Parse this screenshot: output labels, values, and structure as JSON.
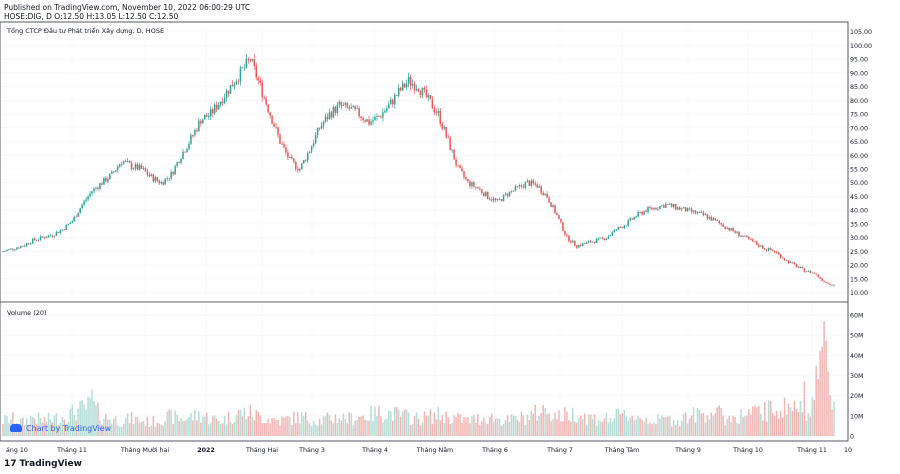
{
  "header": {
    "published": "Published on TradingView.com, November 10, 2022 06:00:29 UTC",
    "ohlc_line": "HOSE:DIG, D O:12.50 H:13.05 L:12.50 C:12.50"
  },
  "footer": {
    "brand": "TradingView",
    "watermark": "Chart by TradingView"
  },
  "colors": {
    "up": "#26a69a",
    "down": "#ef5350",
    "vol_up": "#b5ddd6",
    "vol_down": "#f3b5b4",
    "grid": "#f0f3fa",
    "axis_text": "#131722",
    "pane_border": "#2a2e39"
  },
  "chart_data": {
    "type": "candlestick",
    "title": "Tổng CTCP Đầu tư Phát triển Xây dựng, D, HOSE",
    "volume_title": "Volume (20)",
    "price_axis": {
      "ticks": [
        "105.00",
        "100.00",
        "95.00",
        "90.00",
        "85.00",
        "80.00",
        "75.00",
        "70.00",
        "65.00",
        "60.00",
        "55.00",
        "50.00",
        "45.00",
        "40.00",
        "35.00",
        "30.00",
        "25.00",
        "20.00",
        "15.00",
        "10.00"
      ],
      "range": [
        8,
        106
      ]
    },
    "volume_axis": {
      "ticks": [
        "60M",
        "50M",
        "40M",
        "30M",
        "20M",
        "10M",
        "0"
      ],
      "range": [
        0,
        62
      ]
    },
    "time_axis": {
      "labels": [
        "áng 10",
        "Tháng 11",
        "Tháng Mười hai",
        "2022",
        "Tháng Hai",
        "Tháng 3",
        "Tháng 4",
        "Tháng Năm",
        "Tháng 6",
        "Tháng 7",
        "Tháng Tám",
        "Tháng 9",
        "Tháng 10",
        "Tháng 11",
        "10"
      ],
      "bold": [
        "2022"
      ]
    },
    "price_path_weekly": [
      25,
      26,
      27,
      29,
      30,
      31,
      33,
      36,
      42,
      47,
      50,
      53,
      58,
      56,
      55,
      52,
      50,
      53,
      60,
      66,
      73,
      75,
      80,
      85,
      90,
      95,
      85,
      75,
      65,
      58,
      55,
      62,
      70,
      75,
      78,
      77,
      75,
      72,
      74,
      78,
      83,
      87,
      85,
      80,
      75,
      65,
      55,
      50,
      48,
      45,
      43,
      46,
      48,
      50,
      49,
      45,
      38,
      30,
      27,
      28,
      29,
      30,
      33,
      35,
      38,
      40,
      41,
      42,
      41,
      40,
      39,
      38,
      36,
      34,
      32,
      30,
      28,
      26,
      25,
      22,
      20,
      18,
      17,
      14,
      12.5
    ],
    "volume_path_weekly": [
      8,
      9,
      7,
      10,
      8,
      9,
      10,
      12,
      14,
      16,
      10,
      9,
      8,
      9,
      8,
      7,
      9,
      10,
      9,
      10,
      11,
      9,
      8,
      10,
      12,
      12,
      10,
      9,
      8,
      9,
      10,
      9,
      8,
      9,
      10,
      9,
      10,
      11,
      12,
      12,
      11,
      10,
      9,
      10,
      11,
      10,
      9,
      8,
      9,
      10,
      9,
      8,
      9,
      10,
      12,
      14,
      10,
      11,
      12,
      10,
      9,
      9,
      10,
      11,
      10,
      9,
      8,
      9,
      8,
      10,
      11,
      12,
      13,
      9,
      10,
      11,
      12,
      13,
      14,
      15,
      16,
      12,
      20,
      50,
      13
    ],
    "volume_spikes": [
      {
        "week": 9,
        "value": 23
      },
      {
        "week": 81,
        "value": 27
      },
      {
        "week": 83,
        "value": 57
      }
    ],
    "last": {
      "open": 12.5,
      "high": 13.05,
      "low": 12.5,
      "close": 12.5
    }
  }
}
